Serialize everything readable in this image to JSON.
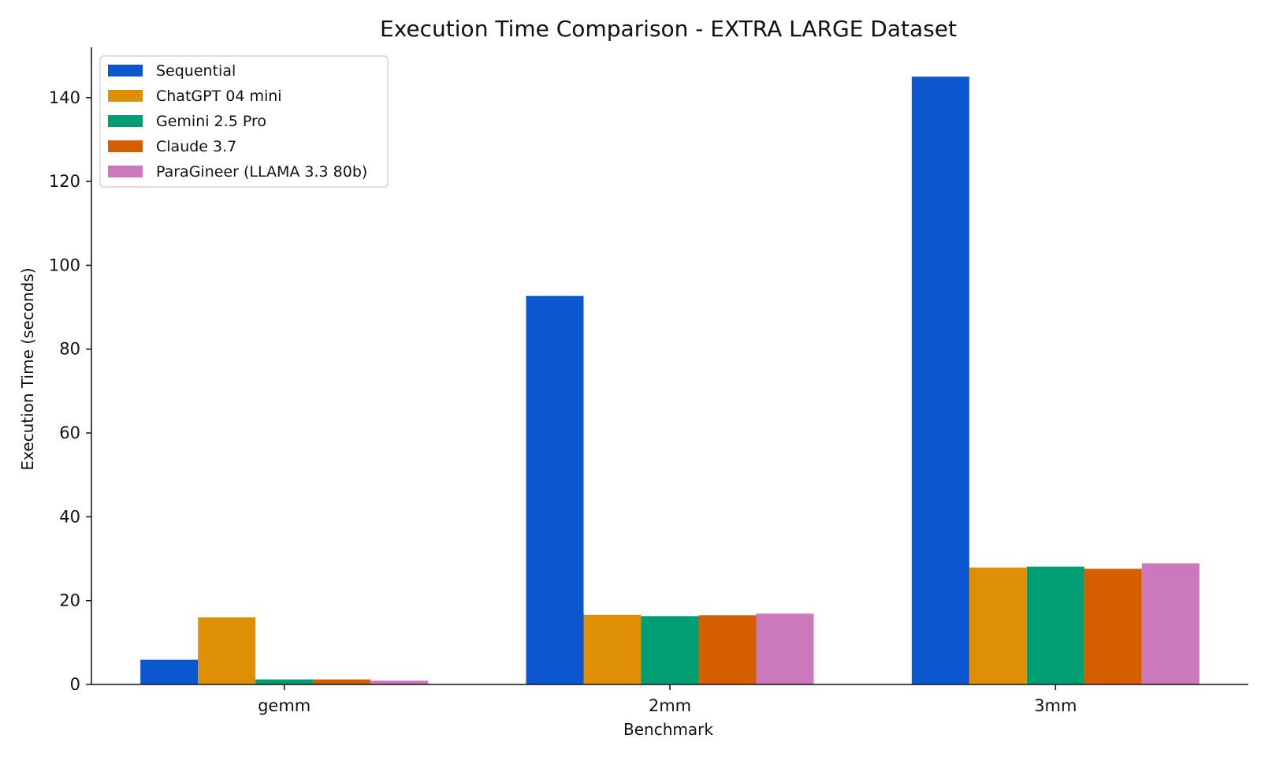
{
  "chart_data": {
    "type": "bar",
    "title": "Execution Time Comparison - EXTRA LARGE Dataset",
    "xlabel": "Benchmark",
    "ylabel": "Execution Time (seconds)",
    "categories": [
      "gemm",
      "2mm",
      "3mm"
    ],
    "ylim": [
      0,
      152
    ],
    "yticks": [
      0,
      20,
      40,
      60,
      80,
      100,
      120,
      140
    ],
    "grid": false,
    "legend_position": "top-left",
    "series": [
      {
        "name": "Sequential",
        "color": "#0c57d0",
        "values": [
          5.9,
          92.7,
          145.0
        ]
      },
      {
        "name": "ChatGPT 04 mini",
        "color": "#de8f05",
        "values": [
          16.0,
          16.6,
          27.9
        ]
      },
      {
        "name": "Gemini 2.5 Pro",
        "color": "#029e73",
        "values": [
          1.2,
          16.3,
          28.1
        ]
      },
      {
        "name": "Claude 3.7",
        "color": "#d55e00",
        "values": [
          1.2,
          16.5,
          27.6
        ]
      },
      {
        "name": "ParaGineer (LLAMA 3.3 80b)",
        "color": "#cc78bc",
        "values": [
          0.9,
          16.9,
          28.9
        ]
      }
    ]
  }
}
